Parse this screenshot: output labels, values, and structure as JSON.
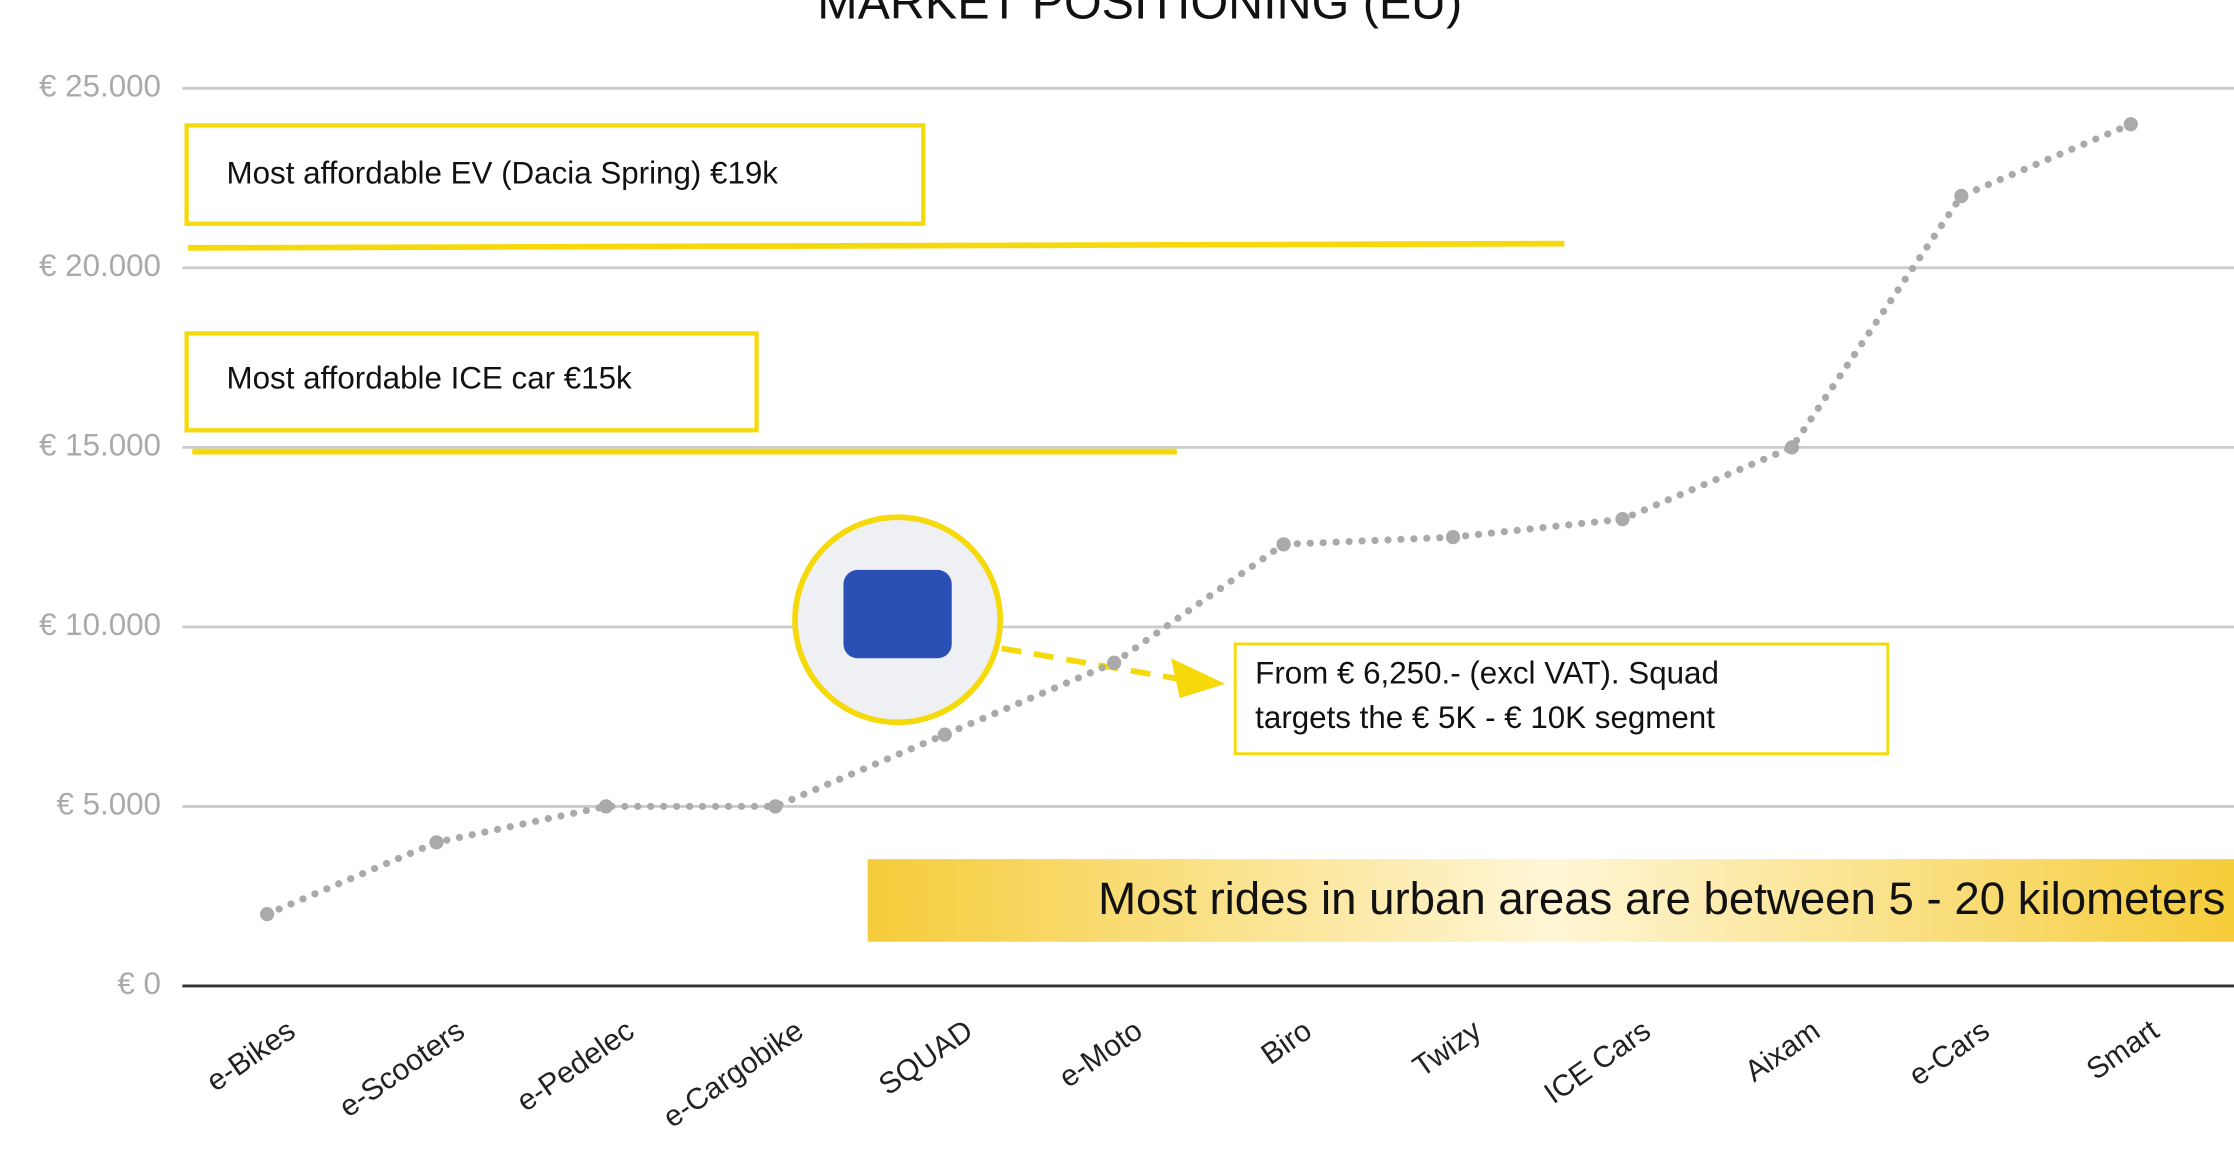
{
  "chart_data": {
    "type": "line",
    "title": "MARKET POSITIONING (EU)",
    "categories": [
      "e-Bikes",
      "e-Scooters",
      "e-Pedelec",
      "e-Cargobike",
      "SQUAD",
      "e-Moto",
      "Biro",
      "Twizy",
      "ICE Cars",
      "Aixam",
      "e-Cars",
      "Smart"
    ],
    "values": [
      2000,
      4000,
      5000,
      5000,
      7000,
      9000,
      12300,
      12500,
      13000,
      15000,
      22000,
      24000
    ],
    "color": "#aaaaaa",
    "ylim": [
      0,
      25000
    ],
    "yticks": [
      {
        "value": 0,
        "label": "€ 0"
      },
      {
        "value": 5000,
        "label": "€ 5.000"
      },
      {
        "value": 10000,
        "label": "€ 10.000"
      },
      {
        "value": 15000,
        "label": "€ 15.000"
      },
      {
        "value": 20000,
        "label": "€ 20.000"
      },
      {
        "value": 25000,
        "label": "€ 25.000"
      }
    ],
    "grid": true,
    "annotations": {
      "ev": "Most affordable EV (Dacia Spring)  €19k",
      "ice": "Most affordable ICE car €15k",
      "squad": [
        "From € 6,250.- (excl VAT). Squad",
        "targets the € 5K - € 10K segment"
      ],
      "banner": "Most rides in urban areas are between 5 - 20 kilometers"
    }
  }
}
